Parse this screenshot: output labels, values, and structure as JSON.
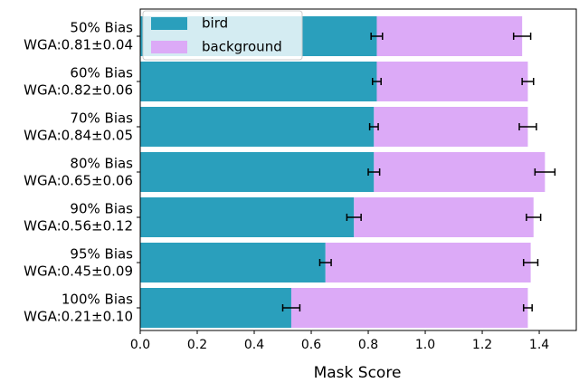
{
  "chart_data": {
    "type": "bar",
    "orientation": "horizontal",
    "stacked": true,
    "x_label": "Mask Score",
    "categories": [
      [
        "50% Bias",
        "WGA:0.81±0.04"
      ],
      [
        "60% Bias",
        "WGA:0.82±0.06"
      ],
      [
        "70% Bias",
        "WGA:0.84±0.05"
      ],
      [
        "80% Bias",
        "WGA:0.65±0.06"
      ],
      [
        "90% Bias",
        "WGA:0.56±0.12"
      ],
      [
        "95% Bias",
        "WGA:0.45±0.09"
      ],
      [
        "100% Bias",
        "WGA:0.21±0.10"
      ]
    ],
    "series": [
      {
        "name": "bird",
        "color": "#2a9fbc",
        "values": [
          0.83,
          0.83,
          0.82,
          0.82,
          0.75,
          0.65,
          0.53
        ],
        "errors": [
          0.02,
          0.015,
          0.015,
          0.02,
          0.025,
          0.02,
          0.03
        ]
      },
      {
        "name": "background",
        "color": "#dcaaf7",
        "values": [
          0.51,
          0.53,
          0.54,
          0.6,
          0.63,
          0.72,
          0.83
        ],
        "errors": [
          0.03,
          0.02,
          0.03,
          0.035,
          0.025,
          0.025,
          0.015
        ]
      }
    ],
    "xlim": [
      0,
      1.53
    ],
    "xticks": [
      {
        "value": 0,
        "label": "0.0"
      },
      0.2,
      0.4,
      0.6,
      0.8,
      {
        "value": 1,
        "label": "1.0"
      },
      1.2,
      1.4
    ],
    "legend": "upper left"
  }
}
